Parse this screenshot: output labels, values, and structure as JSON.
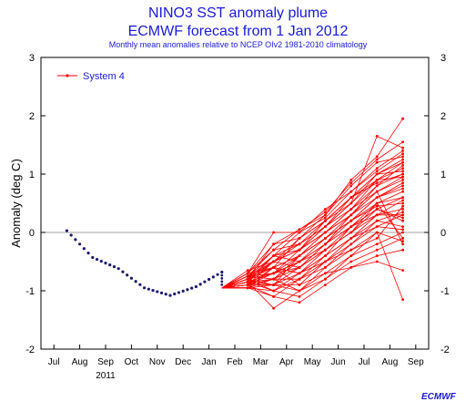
{
  "header": {
    "title_line1": "NINO3 SST anomaly plume",
    "title_line2": "ECMWF forecast from 1 Jan 2012",
    "subtitle": "Monthly mean anomalies relative to NCEP OIv2 1981-2010 climatology"
  },
  "logo": {
    "text": "ECMWF"
  },
  "colors": {
    "observed": "#1a1a6e",
    "forecast": "#ff0000",
    "text": "#000000",
    "title": "#1a1ad6",
    "zero_line": "#a0a0a0"
  },
  "chart_data": {
    "type": "line",
    "ylabel": "Anomaly (deg C)",
    "xlabel": "",
    "ylim": [
      -2,
      3
    ],
    "y_ticks": [
      "-2",
      "-1",
      "0",
      "1",
      "2",
      "3"
    ],
    "x_ticks": [
      "Jul",
      "Aug",
      "Sep",
      "Oct",
      "Nov",
      "Dec",
      "Jan",
      "Feb",
      "Mar",
      "Apr",
      "May",
      "Jun",
      "Jul",
      "Aug",
      "Sep"
    ],
    "x_year_label": "2011",
    "x_year_under": "Sep",
    "legend": {
      "label": "System 4",
      "placement": "top-left"
    },
    "observed": {
      "months": [
        -6.5,
        -5.5,
        -4.5,
        -3.5,
        -2.5,
        -1.5,
        -0.5
      ],
      "values": [
        0.03,
        -0.43,
        -0.62,
        -0.95,
        -1.08,
        -0.93,
        -0.68
      ]
    },
    "forecast": {
      "start_month": -0.5,
      "start_value": -0.95,
      "months": [
        1,
        2,
        3,
        4,
        5,
        6,
        7
      ],
      "members": [
        [
          -0.85,
          -0.4,
          0.0,
          0.4,
          0.7,
          1.1,
          1.4
        ],
        [
          -0.8,
          -0.6,
          -0.1,
          0.3,
          0.9,
          1.3,
          1.95
        ],
        [
          -0.9,
          -0.7,
          -0.3,
          0.2,
          0.6,
          1.0,
          1.2
        ],
        [
          -0.75,
          -0.5,
          -0.2,
          0.1,
          0.5,
          0.9,
          1.1
        ],
        [
          -0.7,
          -0.3,
          0.05,
          0.3,
          0.8,
          1.2,
          1.3
        ],
        [
          -0.95,
          -0.8,
          -0.4,
          0.0,
          0.4,
          0.8,
          1.0
        ],
        [
          -0.8,
          -0.2,
          0.05,
          0.35,
          0.85,
          1.25,
          1.55
        ],
        [
          -0.85,
          -0.9,
          -0.6,
          -0.2,
          0.3,
          0.7,
          0.9
        ],
        [
          -0.65,
          -0.5,
          -0.3,
          0.1,
          0.6,
          1.0,
          1.25
        ],
        [
          -0.9,
          -1.1,
          -0.8,
          -0.4,
          0.1,
          0.4,
          0.6
        ],
        [
          -0.75,
          -0.4,
          -0.2,
          0.2,
          0.5,
          1.0,
          1.05
        ],
        [
          -0.85,
          -0.7,
          -0.5,
          -0.1,
          0.2,
          0.6,
          0.85
        ],
        [
          -0.8,
          -0.6,
          -0.4,
          -0.1,
          0.3,
          0.8,
          1.15
        ],
        [
          -0.7,
          0.0,
          0.0,
          0.25,
          0.7,
          1.05,
          1.35
        ],
        [
          -0.95,
          -1.0,
          -0.7,
          -0.3,
          0.0,
          0.3,
          0.55
        ],
        [
          -0.8,
          -0.5,
          -0.3,
          0.0,
          0.4,
          0.9,
          0.95
        ],
        [
          -0.9,
          -0.8,
          -0.6,
          -0.3,
          0.1,
          0.5,
          0.7
        ],
        [
          -0.85,
          -1.3,
          -1.0,
          -0.7,
          -0.4,
          -0.2,
          0.0
        ],
        [
          -0.75,
          -0.7,
          -0.5,
          -0.2,
          0.2,
          0.45,
          0.5
        ],
        [
          -0.8,
          -0.9,
          -0.9,
          -0.5,
          -0.2,
          0.1,
          0.3
        ],
        [
          -0.9,
          -0.6,
          -0.7,
          -0.4,
          -0.1,
          0.2,
          0.35
        ],
        [
          -0.85,
          -1.0,
          -1.1,
          -0.8,
          -0.5,
          -0.3,
          -0.1
        ],
        [
          -0.8,
          -0.5,
          -0.6,
          -0.3,
          0.0,
          0.4,
          0.25
        ],
        [
          -0.75,
          -0.8,
          -0.8,
          -0.6,
          -0.3,
          0.0,
          -0.15
        ],
        [
          -0.95,
          -1.1,
          -1.2,
          -0.9,
          -0.6,
          -0.4,
          -0.3
        ],
        [
          -0.85,
          -0.4,
          -0.5,
          -0.2,
          0.1,
          0.3,
          0.4
        ],
        [
          -0.7,
          -0.6,
          -0.9,
          -0.7,
          -0.6,
          -0.5,
          -0.65
        ],
        [
          -0.9,
          -0.9,
          -1.0,
          -0.6,
          -0.2,
          0.2,
          0.1
        ],
        [
          -0.8,
          -0.7,
          -0.4,
          -0.1,
          0.2,
          0.5,
          -0.1
        ],
        [
          -0.85,
          -0.8,
          -1.0,
          -0.8,
          -0.4,
          0.0,
          -1.15
        ],
        [
          -0.75,
          -0.3,
          -0.2,
          0.1,
          0.4,
          0.7,
          -0.2
        ],
        [
          -0.95,
          -0.6,
          -0.7,
          -0.5,
          -0.3,
          -0.1,
          0.45
        ],
        [
          -0.8,
          -0.9,
          -0.4,
          0.0,
          0.3,
          0.6,
          0.8
        ],
        [
          -0.9,
          -0.5,
          -0.3,
          0.1,
          0.5,
          1.65,
          1.45
        ],
        [
          -0.85,
          -0.7,
          -0.6,
          -0.2,
          0.1,
          0.4,
          0.2
        ],
        [
          -0.8,
          -1.0,
          -0.8,
          -0.5,
          -0.1,
          0.3,
          0.3
        ],
        [
          -0.75,
          -0.6,
          -0.4,
          -0.1,
          0.2,
          0.6,
          0.75
        ],
        [
          -0.9,
          -0.8,
          -0.5,
          -0.3,
          0.0,
          0.5,
          0.6
        ],
        [
          -0.85,
          -0.5,
          -0.1,
          0.2,
          0.6,
          0.9,
          1.2
        ],
        [
          -0.8,
          -0.4,
          -0.3,
          0.0,
          0.3,
          0.7,
          0.95
        ],
        [
          -0.95,
          -0.9,
          -0.7,
          -0.4,
          -0.1,
          0.1,
          0.05
        ],
        [
          -0.7,
          -0.2,
          -0.1,
          0.2,
          0.6,
          0.85,
          1.0
        ]
      ]
    }
  }
}
